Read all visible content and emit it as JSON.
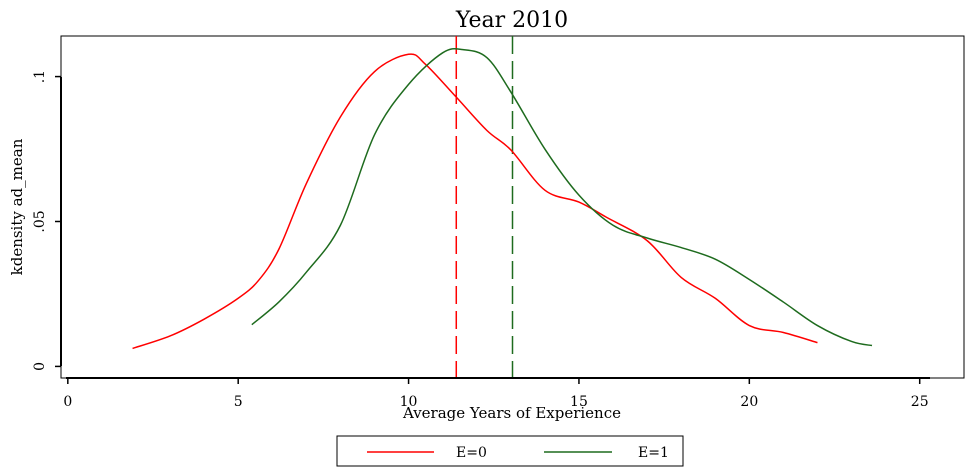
{
  "chart_data": {
    "type": "line",
    "title": "Year 2010",
    "xlabel": "Average Years of Experience",
    "ylabel": "kdensity ad_mean",
    "xlim": [
      -0.2,
      26.3
    ],
    "ylim": [
      -0.004,
      0.114
    ],
    "x_ticks": [
      0,
      5,
      10,
      15,
      20,
      25
    ],
    "x_tick_labels": [
      "0",
      "5",
      "10",
      "15",
      "20",
      "25"
    ],
    "y_ticks": [
      0,
      0.05,
      0.1
    ],
    "y_tick_labels": [
      "0",
      ".05",
      ".1"
    ],
    "grid": false,
    "legend_position": "bottom",
    "series": [
      {
        "name": "E=0",
        "color": "#ff0000",
        "points": [
          [
            1.9,
            0.0062
          ],
          [
            3.0,
            0.0105
          ],
          [
            4.0,
            0.0163
          ],
          [
            5.0,
            0.0235
          ],
          [
            5.6,
            0.0297
          ],
          [
            6.2,
            0.0406
          ],
          [
            7.0,
            0.0631
          ],
          [
            8.0,
            0.0861
          ],
          [
            9.0,
            0.1017
          ],
          [
            10.0,
            0.1077
          ],
          [
            10.5,
            0.1042
          ],
          [
            11.4,
            0.0929
          ],
          [
            12.3,
            0.0814
          ],
          [
            13.0,
            0.0747
          ],
          [
            14.0,
            0.0608
          ],
          [
            15.0,
            0.0567
          ],
          [
            15.8,
            0.0515
          ],
          [
            17.0,
            0.0434
          ],
          [
            18.0,
            0.0307
          ],
          [
            19.0,
            0.0235
          ],
          [
            20.0,
            0.0141
          ],
          [
            21.0,
            0.0117
          ],
          [
            22.0,
            0.0082
          ]
        ]
      },
      {
        "name": "E=1",
        "color": "#1e6b1e",
        "points": [
          [
            5.4,
            0.0144
          ],
          [
            6.2,
            0.0223
          ],
          [
            7.0,
            0.0325
          ],
          [
            8.0,
            0.0487
          ],
          [
            9.0,
            0.0799
          ],
          [
            10.0,
            0.0973
          ],
          [
            11.0,
            0.1082
          ],
          [
            11.6,
            0.1093
          ],
          [
            12.3,
            0.1065
          ],
          [
            13.0,
            0.0947
          ],
          [
            14.0,
            0.075
          ],
          [
            15.0,
            0.0591
          ],
          [
            16.0,
            0.0487
          ],
          [
            17.0,
            0.0443
          ],
          [
            18.0,
            0.041
          ],
          [
            19.0,
            0.037
          ],
          [
            20.0,
            0.03
          ],
          [
            21.0,
            0.0222
          ],
          [
            22.0,
            0.0141
          ],
          [
            23.0,
            0.0086
          ],
          [
            23.6,
            0.0072
          ]
        ]
      }
    ],
    "reference_lines": [
      {
        "series": "E=0",
        "x": 11.4,
        "color": "#ff0000",
        "style": "dashed"
      },
      {
        "series": "E=1",
        "x": 13.05,
        "color": "#1e6b1e",
        "style": "dashed"
      }
    ]
  }
}
